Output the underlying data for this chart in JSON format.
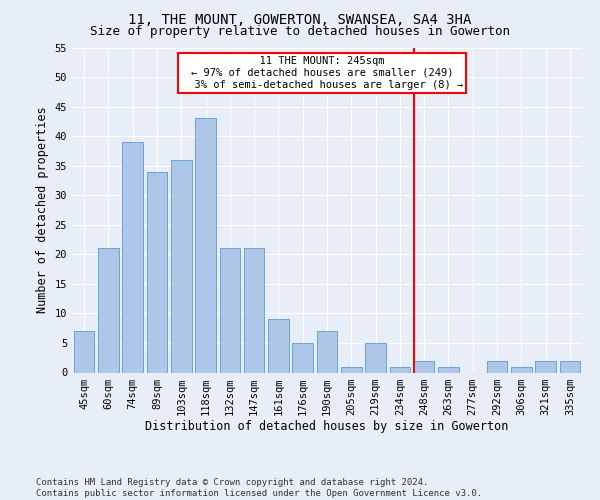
{
  "title": "11, THE MOUNT, GOWERTON, SWANSEA, SA4 3HA",
  "subtitle": "Size of property relative to detached houses in Gowerton",
  "xlabel": "Distribution of detached houses by size in Gowerton",
  "ylabel": "Number of detached properties",
  "categories": [
    "45sqm",
    "60sqm",
    "74sqm",
    "89sqm",
    "103sqm",
    "118sqm",
    "132sqm",
    "147sqm",
    "161sqm",
    "176sqm",
    "190sqm",
    "205sqm",
    "219sqm",
    "234sqm",
    "248sqm",
    "263sqm",
    "277sqm",
    "292sqm",
    "306sqm",
    "321sqm",
    "335sqm"
  ],
  "values": [
    7,
    21,
    39,
    34,
    36,
    43,
    21,
    21,
    9,
    5,
    7,
    1,
    5,
    1,
    2,
    1,
    0,
    2,
    1,
    2,
    2
  ],
  "bar_color": "#aec6e8",
  "bar_edge_color": "#5b9bd5",
  "background_color": "#e8eef7",
  "grid_color": "#ffffff",
  "marker_color": "red",
  "marker_label": "11 THE MOUNT: 245sqm",
  "marker_pct_smaller": "97% of detached houses are smaller (249)",
  "marker_pct_larger": "3% of semi-detached houses are larger (8)",
  "ylim": [
    0,
    55
  ],
  "yticks": [
    0,
    5,
    10,
    15,
    20,
    25,
    30,
    35,
    40,
    45,
    50,
    55
  ],
  "footer_line1": "Contains HM Land Registry data © Crown copyright and database right 2024.",
  "footer_line2": "Contains public sector information licensed under the Open Government Licence v3.0.",
  "title_fontsize": 10,
  "subtitle_fontsize": 9,
  "xlabel_fontsize": 8.5,
  "ylabel_fontsize": 8.5,
  "tick_fontsize": 7.5,
  "footer_fontsize": 6.5,
  "annot_fontsize": 7.5
}
